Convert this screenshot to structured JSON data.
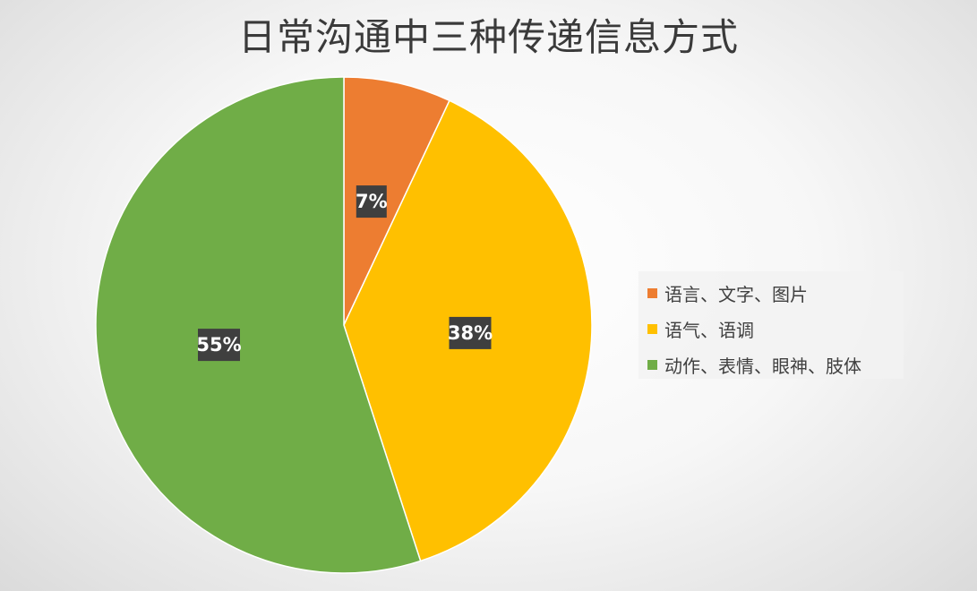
{
  "chart_data": {
    "type": "pie",
    "title": "日常沟通中三种传递信息方式",
    "categories": [
      "语言、文字、图片",
      "语气、语调",
      "动作、表情、眼神、肢体"
    ],
    "values": [
      7,
      38,
      55
    ],
    "data_labels": [
      "7%",
      "38%",
      "55%"
    ],
    "colors": [
      "#ED7D31",
      "#FFC000",
      "#70AD47"
    ],
    "start_angle_deg": 0,
    "direction": "clockwise",
    "legend_position": "right"
  }
}
